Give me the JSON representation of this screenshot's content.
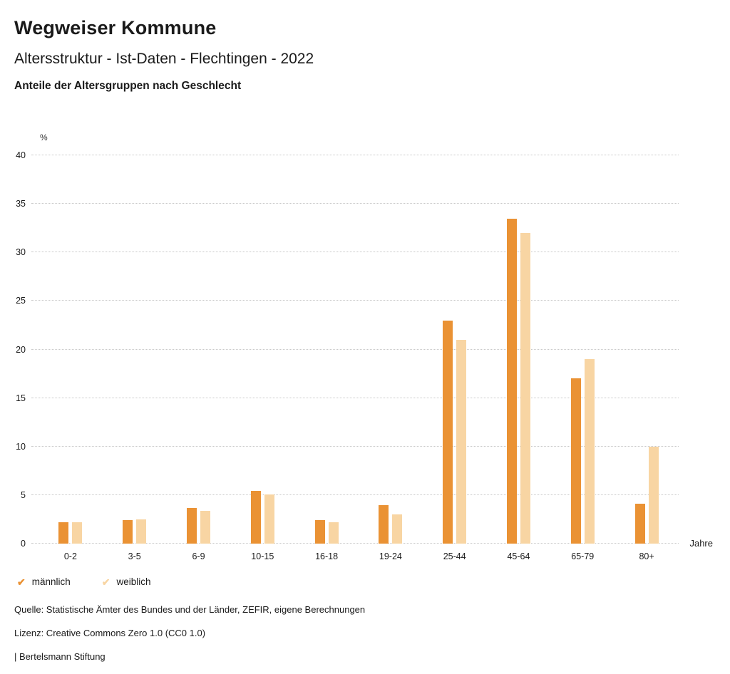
{
  "header": {
    "brand": "Wegweiser Kommune",
    "title": "Altersstruktur - Ist-Daten - Flechtingen - 2022",
    "subtitle": "Anteile der Altersgruppen nach Geschlecht"
  },
  "chart_data": {
    "type": "bar",
    "title": "Anteile der Altersgruppen nach Geschlecht",
    "categories": [
      "0-2",
      "3-5",
      "6-9",
      "10-15",
      "16-18",
      "19-24",
      "25-44",
      "45-64",
      "65-79",
      "80+"
    ],
    "series": [
      {
        "name": "männlich",
        "color": "#EA9234",
        "values": [
          2.2,
          2.4,
          3.7,
          5.4,
          2.4,
          4.0,
          23.0,
          33.5,
          17.0,
          4.1
        ]
      },
      {
        "name": "weiblich",
        "color": "#F8D5A3",
        "values": [
          2.2,
          2.5,
          3.4,
          5.1,
          2.2,
          3.0,
          21.0,
          32.0,
          19.0,
          10.0
        ]
      }
    ],
    "ylabel": "%",
    "xlabel": "Jahre",
    "ylim": [
      0,
      40
    ],
    "yticks": [
      0,
      5,
      10,
      15,
      20,
      25,
      30,
      35,
      40
    ],
    "grid": true,
    "legend_position": "bottom",
    "legend_marker": "checkmark"
  },
  "footer": {
    "source": "Quelle: Statistische Ämter des Bundes und der Länder, ZEFIR, eigene Berechnungen",
    "license": "Lizenz: Creative Commons Zero 1.0 (CC0 1.0)",
    "attribution": "| Bertelsmann Stiftung"
  }
}
